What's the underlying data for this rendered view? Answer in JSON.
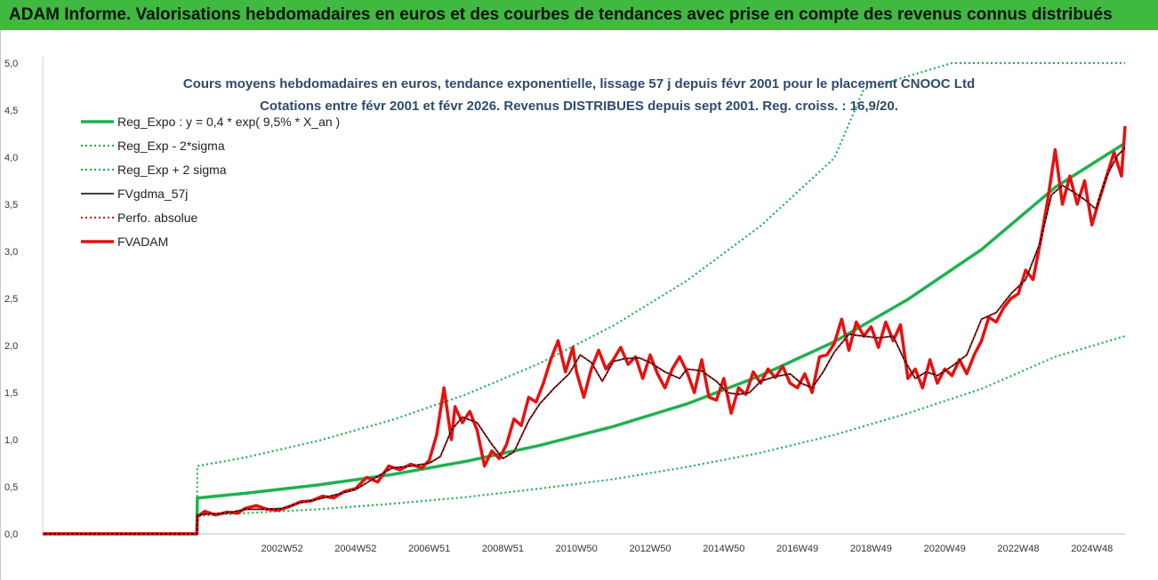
{
  "banner": {
    "title": "ADAM Informe. Valorisations hebdomadaires en euros et des courbes de tendances avec prise en compte des revenus connus distribués"
  },
  "chart_data": {
    "type": "line",
    "title": "Cours moyens hebdomadaires en euros, tendance exponentielle, lissage 57 j depuis févr 2001 pour le placement CNOOC Ltd",
    "subtitle": "Cotations entre févr 2001 et févr 2026.  Revenus DISTRIBUES depuis sept 2001. Reg. croiss. : 16,9/20.",
    "xlabel": "",
    "ylabel": "",
    "ylim": [
      0,
      5
    ],
    "yticks": [
      "0,0",
      "0,5",
      "1,0",
      "1,5",
      "2,0",
      "2,5",
      "3,0",
      "3,5",
      "4,0",
      "4,5",
      "5,0"
    ],
    "xlim": [
      1996.5,
      2025.9
    ],
    "xtick_labels": [
      {
        "x": 2003.0,
        "label": "2002W52"
      },
      {
        "x": 2005.0,
        "label": "2004W52"
      },
      {
        "x": 2007.0,
        "label": "2006W51"
      },
      {
        "x": 2009.0,
        "label": "2008W51"
      },
      {
        "x": 2011.0,
        "label": "2010W50"
      },
      {
        "x": 2013.0,
        "label": "2012W50"
      },
      {
        "x": 2015.0,
        "label": "2014W50"
      },
      {
        "x": 2017.0,
        "label": "2016W49"
      },
      {
        "x": 2019.0,
        "label": "2018W49"
      },
      {
        "x": 2021.0,
        "label": "2020W49"
      },
      {
        "x": 2023.0,
        "label": "2022W48"
      },
      {
        "x": 2025.0,
        "label": "2024W48"
      }
    ],
    "grid": false,
    "legend_position": "top-left",
    "series": [
      {
        "name": "Reg_Expo : y = 0,4 * exp( 9,5% *  X_an )",
        "color": "#1fb14f",
        "style": "solid-thick",
        "x": [
          1996.5,
          2000.69,
          2000.7,
          2002,
          2004,
          2006,
          2008,
          2010,
          2012,
          2014,
          2016,
          2018,
          2020,
          2022,
          2024,
          2025.9
        ],
        "y": [
          0.0,
          0.0,
          0.38,
          0.43,
          0.52,
          0.63,
          0.77,
          0.94,
          1.14,
          1.38,
          1.68,
          2.04,
          2.49,
          3.02,
          3.68,
          4.15
        ]
      },
      {
        "name": "Reg_Exp - 2*sigma",
        "color": "#1fb14f",
        "style": "dotted",
        "x": [
          1996.5,
          2000.69,
          2000.7,
          2002,
          2004,
          2006,
          2008,
          2010,
          2012,
          2014,
          2016,
          2018,
          2020,
          2022,
          2024,
          2025.9
        ],
        "y": [
          0.0,
          0.0,
          0.19,
          0.22,
          0.26,
          0.32,
          0.39,
          0.48,
          0.58,
          0.71,
          0.86,
          1.05,
          1.28,
          1.54,
          1.88,
          2.1
        ]
      },
      {
        "name": "Reg_Exp + 2 sigma",
        "color": "#1fb14f",
        "style": "dotted",
        "x": [
          1996.5,
          2000.69,
          2000.7,
          2002,
          2004,
          2006,
          2008,
          2010,
          2012,
          2014,
          2016,
          2018,
          2018.8,
          2021.2,
          2025.9
        ],
        "y": [
          0.0,
          0.0,
          0.72,
          0.81,
          0.99,
          1.21,
          1.48,
          1.81,
          2.21,
          2.69,
          3.27,
          3.99,
          4.72,
          5.0,
          5.0
        ]
      },
      {
        "name": "FVgdma_57j",
        "color": "#000000",
        "style": "solid",
        "x": [
          1996.5,
          2000.69,
          2000.7,
          2001.0,
          2001.5,
          2002.0,
          2002.5,
          2003.0,
          2003.5,
          2004.0,
          2004.5,
          2005.0,
          2005.5,
          2006.0,
          2006.5,
          2007.0,
          2007.3,
          2007.6,
          2007.9,
          2008.3,
          2008.7,
          2009.0,
          2009.3,
          2009.7,
          2010.0,
          2010.4,
          2010.8,
          2011.1,
          2011.4,
          2011.7,
          2012.0,
          2012.3,
          2012.7,
          2013.0,
          2013.4,
          2013.8,
          2014.0,
          2014.4,
          2014.8,
          2015.1,
          2015.4,
          2015.7,
          2016.0,
          2016.4,
          2016.8,
          2017.1,
          2017.4,
          2017.7,
          2018.0,
          2018.4,
          2018.8,
          2019.2,
          2019.6,
          2019.9,
          2020.2,
          2020.5,
          2020.8,
          2021.2,
          2021.6,
          2022.0,
          2022.4,
          2022.8,
          2023.2,
          2023.6,
          2023.9,
          2024.2,
          2024.5,
          2024.8,
          2025.1,
          2025.4,
          2025.7,
          2025.9
        ],
        "y": [
          0.0,
          0.0,
          0.2,
          0.21,
          0.22,
          0.26,
          0.26,
          0.27,
          0.33,
          0.37,
          0.42,
          0.47,
          0.59,
          0.7,
          0.72,
          0.75,
          0.82,
          1.1,
          1.24,
          1.18,
          0.95,
          0.8,
          0.87,
          1.2,
          1.38,
          1.55,
          1.7,
          1.9,
          1.82,
          1.62,
          1.83,
          1.86,
          1.87,
          1.82,
          1.72,
          1.65,
          1.75,
          1.73,
          1.62,
          1.5,
          1.48,
          1.5,
          1.62,
          1.67,
          1.7,
          1.6,
          1.55,
          1.72,
          1.93,
          2.12,
          2.1,
          2.08,
          2.1,
          1.85,
          1.65,
          1.72,
          1.68,
          1.78,
          1.9,
          2.28,
          2.35,
          2.55,
          2.7,
          3.1,
          3.6,
          3.7,
          3.63,
          3.55,
          3.45,
          3.8,
          4.02,
          4.1
        ]
      },
      {
        "name": "Perfo. absolue",
        "color": "#d62020",
        "style": "dotted",
        "x": [
          1996.5,
          2000.69,
          2000.7,
          2001.0,
          2001.5,
          2002.0,
          2002.5,
          2003.0,
          2003.5,
          2004.0,
          2004.5,
          2005.0,
          2005.5,
          2006.0,
          2006.5,
          2007.0,
          2007.3,
          2007.6,
          2007.9,
          2008.3,
          2008.7,
          2009.0,
          2009.3,
          2009.7,
          2010.0,
          2010.4,
          2010.8,
          2011.1,
          2011.4,
          2011.7,
          2012.0,
          2012.3,
          2012.7,
          2013.0,
          2013.4,
          2013.8,
          2014.0,
          2014.4,
          2014.8,
          2015.1,
          2015.4,
          2015.7,
          2016.0,
          2016.4,
          2016.8,
          2017.1,
          2017.4,
          2017.7,
          2018.0,
          2018.4,
          2018.8,
          2019.2,
          2019.6,
          2019.9,
          2020.2,
          2020.5,
          2020.8,
          2021.2,
          2021.6,
          2022.0,
          2022.4,
          2022.8,
          2023.2,
          2023.6,
          2023.9,
          2024.2,
          2024.5,
          2024.8,
          2025.1,
          2025.4,
          2025.7,
          2025.9
        ],
        "y": [
          0.0,
          0.0,
          0.2,
          0.21,
          0.22,
          0.26,
          0.26,
          0.27,
          0.33,
          0.37,
          0.42,
          0.47,
          0.59,
          0.7,
          0.72,
          0.75,
          0.82,
          1.1,
          1.24,
          1.18,
          0.95,
          0.8,
          0.87,
          1.2,
          1.38,
          1.55,
          1.7,
          1.9,
          1.82,
          1.62,
          1.83,
          1.86,
          1.87,
          1.82,
          1.72,
          1.65,
          1.75,
          1.73,
          1.62,
          1.5,
          1.48,
          1.5,
          1.62,
          1.67,
          1.7,
          1.6,
          1.55,
          1.72,
          1.93,
          2.12,
          2.1,
          2.08,
          2.1,
          1.85,
          1.65,
          1.72,
          1.68,
          1.78,
          1.9,
          2.28,
          2.35,
          2.55,
          2.7,
          3.1,
          3.6,
          3.7,
          3.63,
          3.55,
          3.45,
          3.8,
          4.02,
          4.1
        ]
      },
      {
        "name": "FVADAM",
        "color": "#e81010",
        "style": "solid-thick",
        "x": [
          1996.5,
          2000.69,
          2000.7,
          2000.9,
          2001.2,
          2001.5,
          2001.8,
          2002.0,
          2002.3,
          2002.6,
          2002.9,
          2003.2,
          2003.5,
          2003.8,
          2004.1,
          2004.4,
          2004.7,
          2005.0,
          2005.3,
          2005.6,
          2005.9,
          2006.2,
          2006.5,
          2006.8,
          2007.0,
          2007.2,
          2007.4,
          2007.6,
          2007.7,
          2007.9,
          2008.1,
          2008.3,
          2008.5,
          2008.7,
          2008.9,
          2009.1,
          2009.3,
          2009.5,
          2009.7,
          2009.9,
          2010.1,
          2010.3,
          2010.5,
          2010.7,
          2010.9,
          2011.0,
          2011.2,
          2011.4,
          2011.6,
          2011.8,
          2012.0,
          2012.2,
          2012.4,
          2012.6,
          2012.8,
          2013.0,
          2013.2,
          2013.4,
          2013.6,
          2013.8,
          2014.0,
          2014.2,
          2014.4,
          2014.6,
          2014.8,
          2015.0,
          2015.2,
          2015.4,
          2015.6,
          2015.8,
          2016.0,
          2016.2,
          2016.4,
          2016.6,
          2016.8,
          2017.0,
          2017.2,
          2017.4,
          2017.6,
          2017.8,
          2018.0,
          2018.2,
          2018.4,
          2018.6,
          2018.8,
          2019.0,
          2019.2,
          2019.4,
          2019.6,
          2019.8,
          2020.0,
          2020.2,
          2020.4,
          2020.6,
          2020.8,
          2021.0,
          2021.2,
          2021.4,
          2021.6,
          2021.8,
          2022.0,
          2022.2,
          2022.4,
          2022.6,
          2022.8,
          2023.0,
          2023.2,
          2023.4,
          2023.6,
          2023.8,
          2024.0,
          2024.2,
          2024.4,
          2024.6,
          2024.8,
          2025.0,
          2025.2,
          2025.4,
          2025.6,
          2025.8,
          2025.9
        ],
        "y": [
          0.0,
          0.0,
          0.18,
          0.24,
          0.2,
          0.23,
          0.22,
          0.27,
          0.3,
          0.26,
          0.25,
          0.29,
          0.34,
          0.35,
          0.4,
          0.38,
          0.45,
          0.48,
          0.6,
          0.55,
          0.72,
          0.68,
          0.74,
          0.7,
          0.78,
          1.05,
          1.55,
          1.0,
          1.35,
          1.18,
          1.3,
          1.1,
          0.72,
          0.88,
          0.8,
          0.95,
          1.22,
          1.15,
          1.45,
          1.4,
          1.6,
          1.85,
          2.05,
          1.72,
          1.98,
          1.72,
          1.45,
          1.75,
          1.95,
          1.75,
          1.85,
          1.98,
          1.8,
          1.88,
          1.65,
          1.9,
          1.7,
          1.55,
          1.75,
          1.88,
          1.72,
          1.5,
          1.85,
          1.45,
          1.42,
          1.65,
          1.28,
          1.55,
          1.48,
          1.72,
          1.6,
          1.75,
          1.66,
          1.78,
          1.6,
          1.55,
          1.7,
          1.5,
          1.88,
          1.9,
          2.02,
          2.28,
          1.95,
          2.25,
          2.1,
          2.2,
          1.98,
          2.25,
          2.05,
          2.22,
          1.65,
          1.75,
          1.55,
          1.85,
          1.6,
          1.75,
          1.68,
          1.85,
          1.7,
          1.9,
          2.05,
          2.3,
          2.25,
          2.4,
          2.5,
          2.55,
          2.8,
          2.7,
          3.1,
          3.55,
          4.08,
          3.5,
          3.8,
          3.5,
          3.75,
          3.28,
          3.55,
          3.8,
          4.05,
          3.8,
          4.33
        ]
      }
    ]
  }
}
